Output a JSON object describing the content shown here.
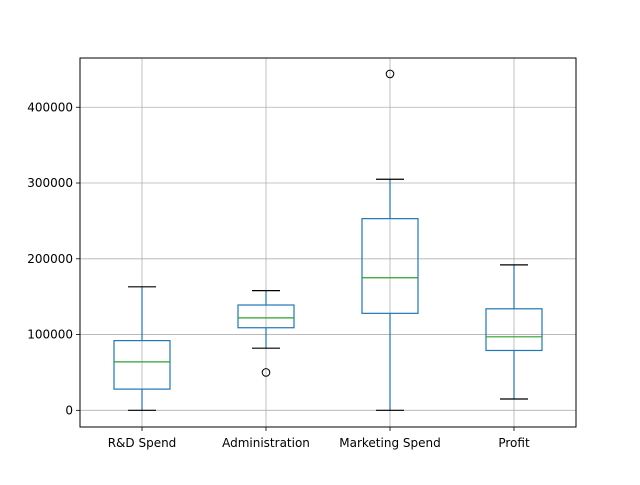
{
  "chart_data": {
    "type": "box",
    "title": "",
    "xlabel": "",
    "ylabel": "",
    "ylim": [
      -22000,
      465000
    ],
    "yticks": [
      0,
      100000,
      200000,
      300000,
      400000
    ],
    "ytick_labels": [
      "0",
      "100000",
      "200000",
      "300000",
      "400000"
    ],
    "grid": true,
    "categories": [
      "R&D Spend",
      "Administration",
      "Marketing Spend",
      "Profit"
    ],
    "boxes": [
      {
        "label": "R&D Spend",
        "whisker_low": 0,
        "q1": 28000,
        "median": 64000,
        "q3": 92000,
        "whisker_high": 163000,
        "outliers": []
      },
      {
        "label": "Administration",
        "whisker_low": 82000,
        "q1": 109000,
        "median": 122000,
        "q3": 139000,
        "whisker_high": 158000,
        "outliers": [
          50000
        ]
      },
      {
        "label": "Marketing Spend",
        "whisker_low": 0,
        "q1": 128000,
        "median": 175000,
        "q3": 253000,
        "whisker_high": 305000,
        "outliers": [
          444000
        ]
      },
      {
        "label": "Profit",
        "whisker_low": 15000,
        "q1": 79000,
        "median": 97000,
        "q3": 134000,
        "whisker_high": 192000,
        "outliers": []
      }
    ],
    "colors": {
      "box": "#1f77b4",
      "median": "#2ca02c",
      "whisker": "#1f77b4",
      "cap": "#000000",
      "grid": "#b0b0b0",
      "axes": "#000000"
    }
  }
}
